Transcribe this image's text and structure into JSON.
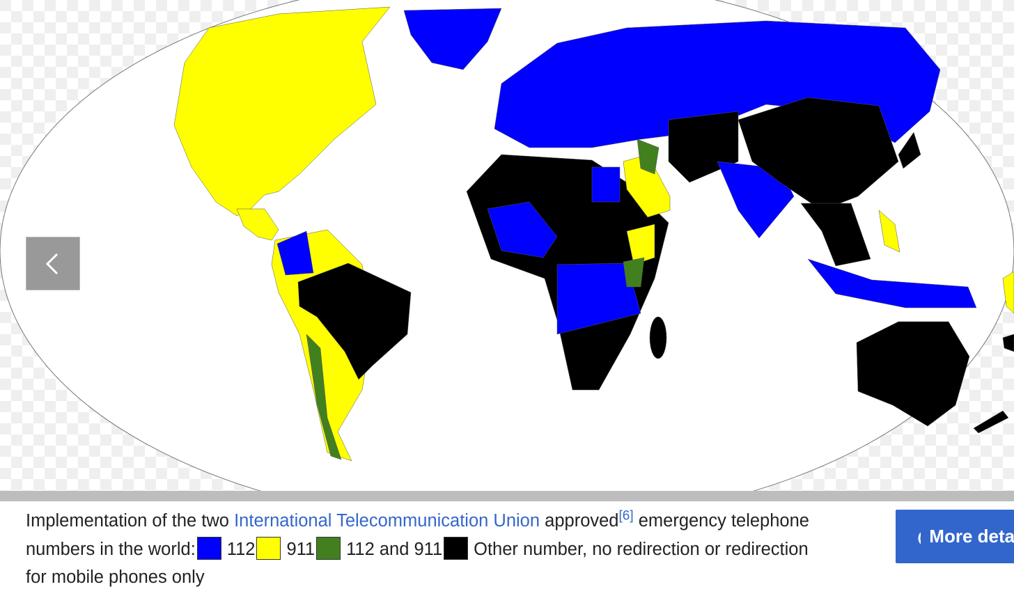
{
  "caption": {
    "intro": "Implementation of the two",
    "link": "International Telecommunication Union",
    "approved": "approved",
    "reference": "[6]",
    "rest": "emergency telephone numbers in the world:"
  },
  "legend": [
    {
      "label": "112",
      "color": "#0000ff"
    },
    {
      "label": "911",
      "color": "#ffff00"
    },
    {
      "label": "112 and 911",
      "color": "#42801f"
    },
    {
      "label": "Other number, no redirection or redirection for mobile phones only",
      "color": "#000000"
    }
  ],
  "more_button": "More details"
}
